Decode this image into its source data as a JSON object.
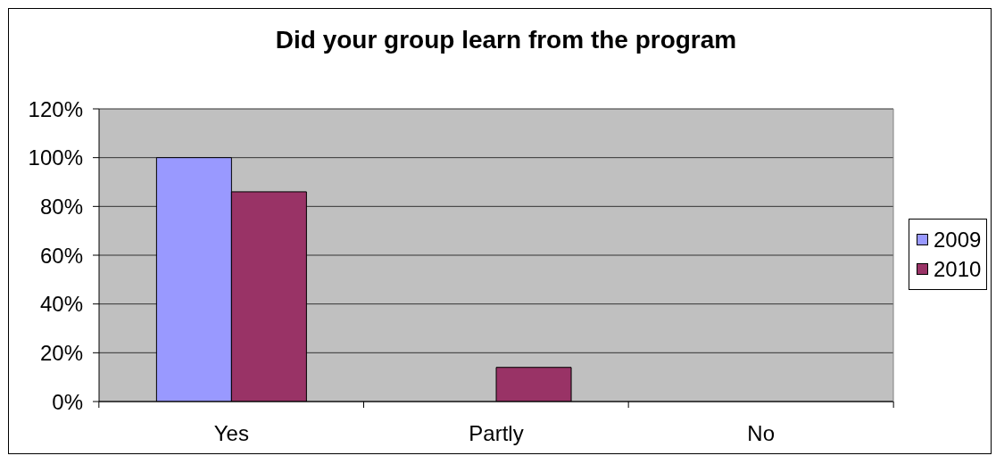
{
  "chart_data": {
    "type": "bar",
    "title": "Did your group learn from the program",
    "categories": [
      "Yes",
      "Partly",
      "No"
    ],
    "series": [
      {
        "name": "2009",
        "color": "#9999ff",
        "values": [
          100,
          0,
          0
        ]
      },
      {
        "name": "2010",
        "color": "#993366",
        "values": [
          86,
          14,
          0
        ]
      }
    ],
    "ylim": [
      0,
      120
    ],
    "yticks": [
      {
        "value": 0,
        "label": "0%"
      },
      {
        "value": 20,
        "label": "20%"
      },
      {
        "value": 40,
        "label": "40%"
      },
      {
        "value": 60,
        "label": "60%"
      },
      {
        "value": 80,
        "label": "80%"
      },
      {
        "value": 100,
        "label": "100%"
      },
      {
        "value": 120,
        "label": "120%"
      }
    ],
    "grid": "y",
    "legend": "right"
  }
}
